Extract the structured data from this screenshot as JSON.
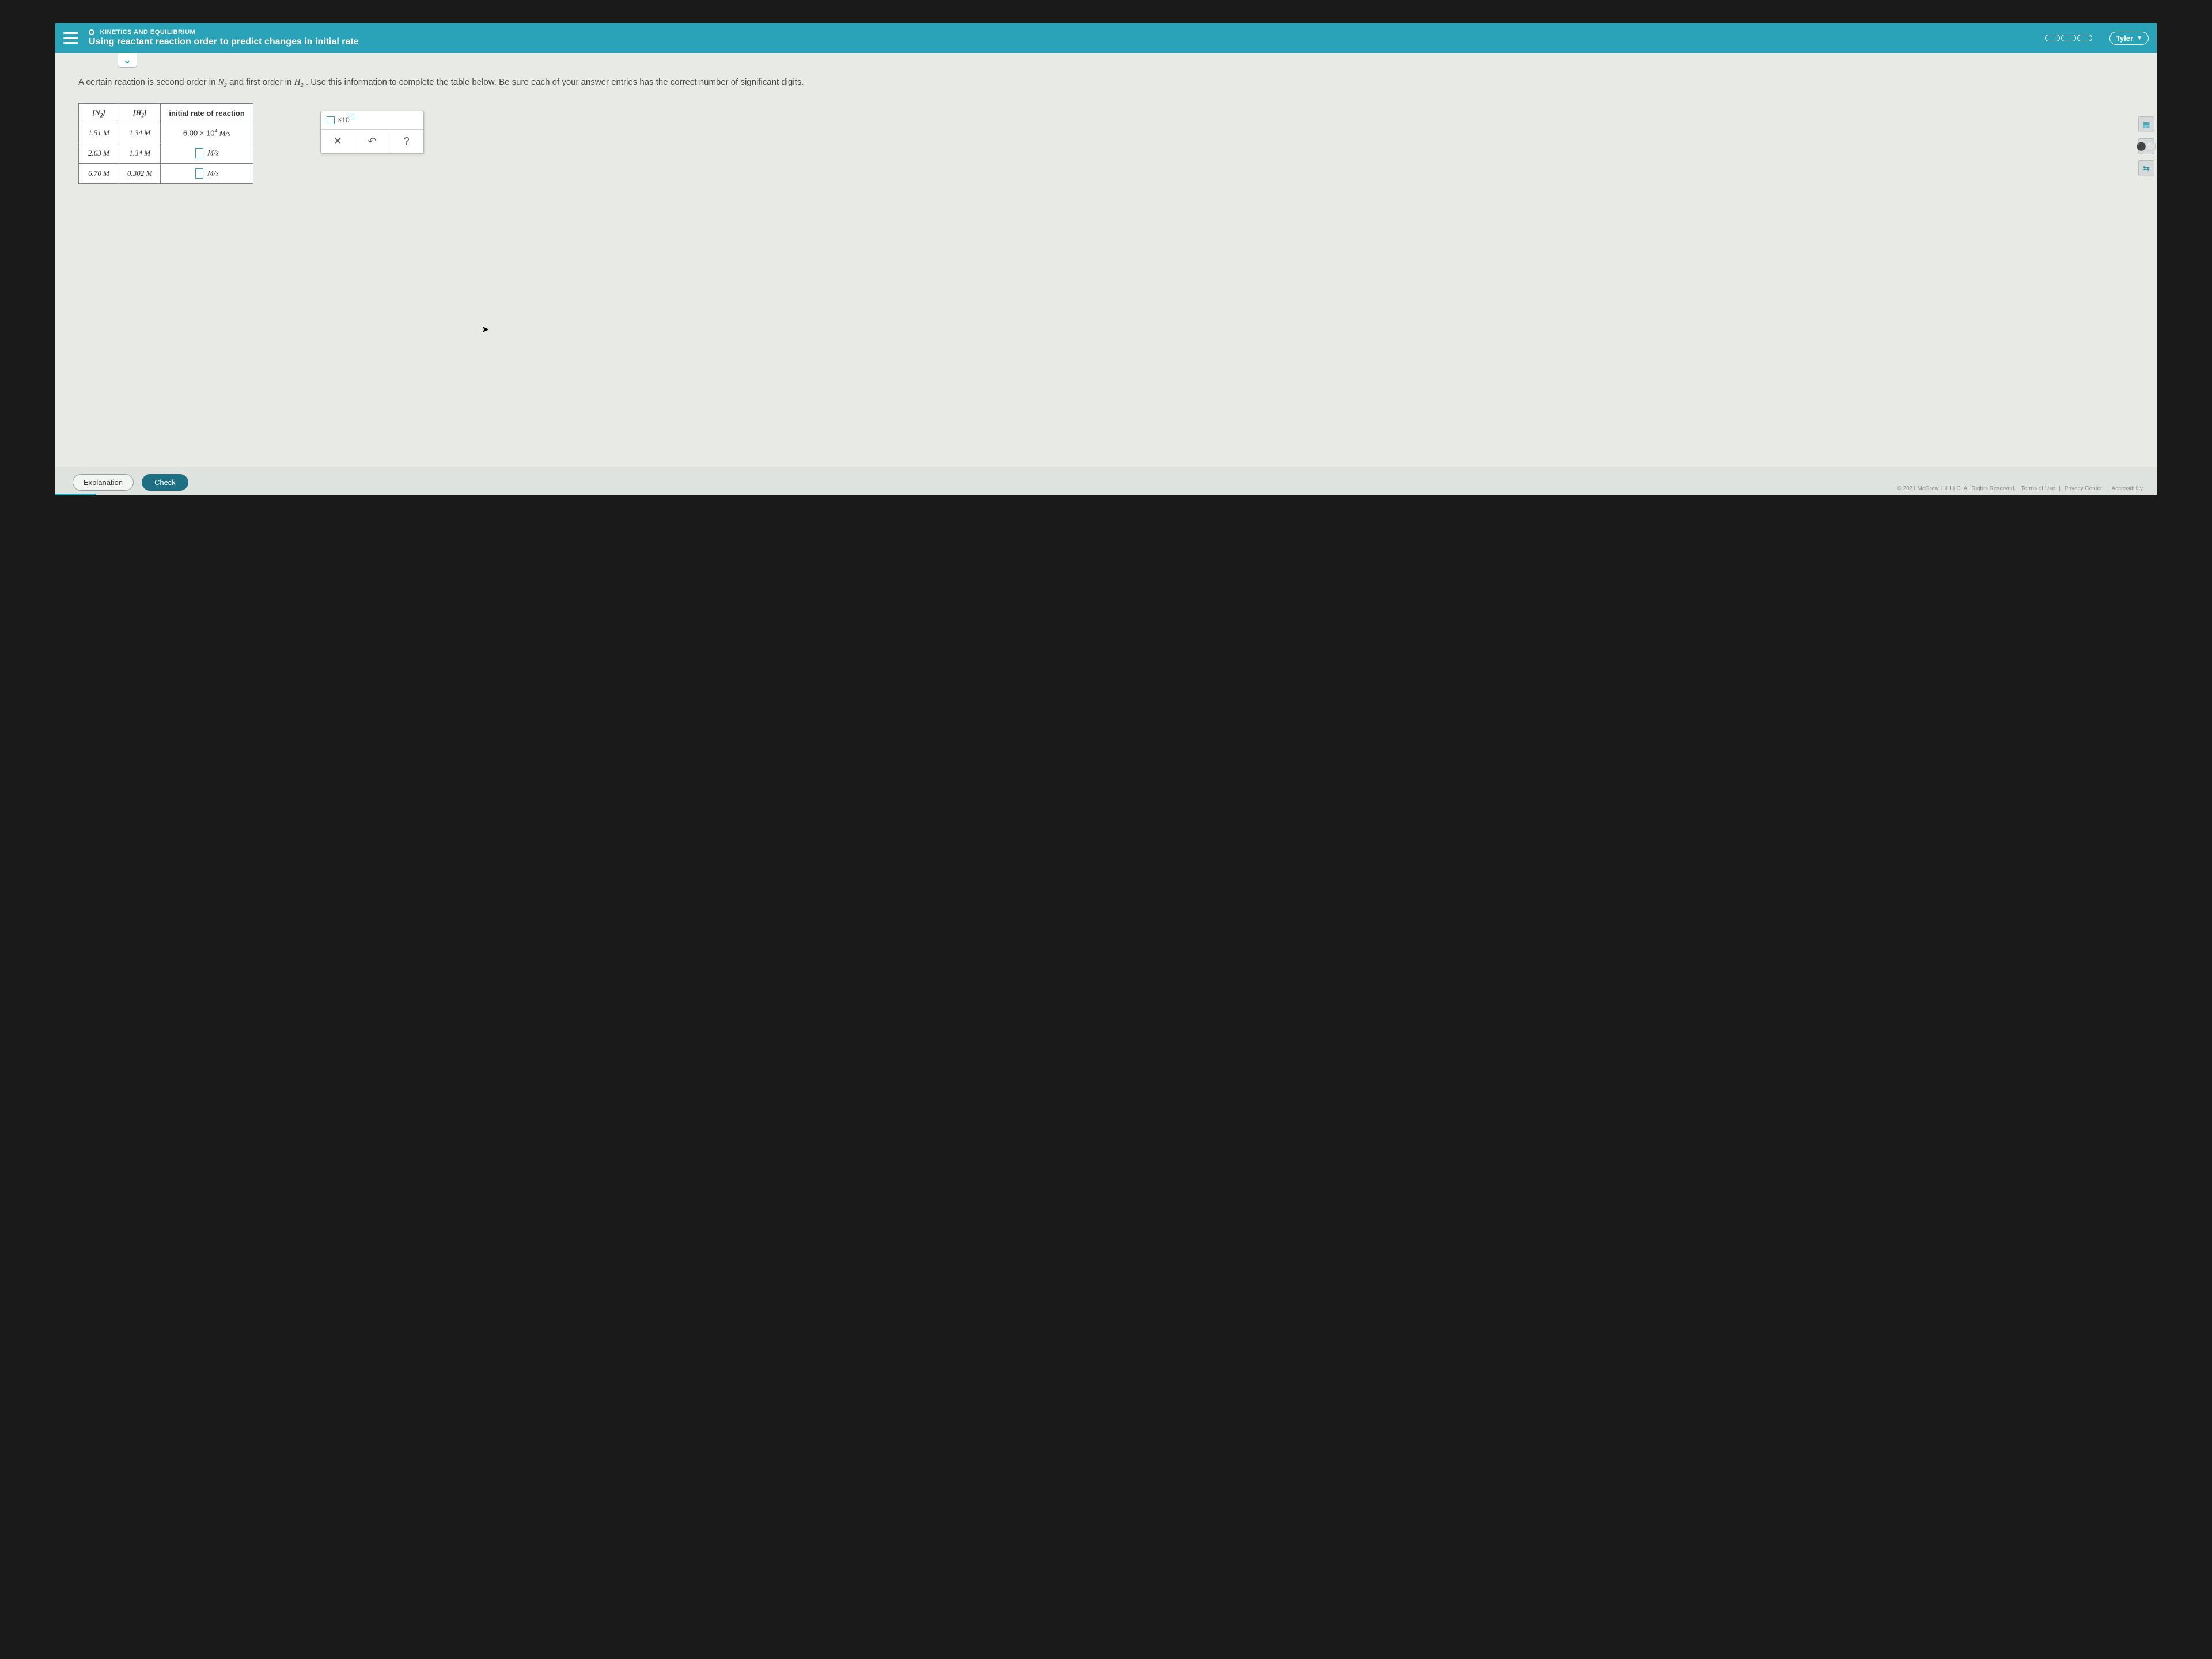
{
  "header": {
    "eyebrow": "KINETICS AND EQUILIBRIUM",
    "title": "Using reactant reaction order to predict changes in initial rate",
    "user": "Tyler"
  },
  "colors": {
    "accent": "#2aa3b8",
    "page_bg": "#e8eae6",
    "table_border": "#808080",
    "text": "#4a4a4a"
  },
  "question": {
    "text_pre": "A certain reaction is second order in ",
    "sp1": "N",
    "sub1": "2",
    "text_mid": " and first order in ",
    "sp2": "H",
    "sub2": "2",
    "text_post": ". Use this information to complete the table below. Be sure each of your answer entries has the correct number of significant digits."
  },
  "table": {
    "headers": {
      "c1": "N",
      "c1sub": "2",
      "c2": "H",
      "c2sub": "2",
      "c3": "initial rate of reaction"
    },
    "rows": [
      {
        "n2": "1.51 M",
        "h2": "1.34 M",
        "rate_html": "6.00 × 10",
        "rate_exp": "4",
        "rate_unit": " M/s",
        "input": false
      },
      {
        "n2": "2.63 M",
        "h2": "1.34 M",
        "rate_unit": "M/s",
        "input": true
      },
      {
        "n2": "6.70 M",
        "h2": "0.302 M",
        "rate_unit": "M/s",
        "input": true
      }
    ]
  },
  "palette": {
    "sci_label": "×10",
    "clear": "✕",
    "undo": "↶",
    "help": "?"
  },
  "sidetools": {
    "t1": "▦",
    "t2": "⚫⚪",
    "t3": "⇆"
  },
  "bottom": {
    "explanation": "Explanation",
    "check": "Check",
    "copyright": "© 2021 McGraw Hill LLC. All Rights Reserved.",
    "terms": "Terms of Use",
    "privacy": "Privacy Center",
    "access": "Accessibility"
  }
}
